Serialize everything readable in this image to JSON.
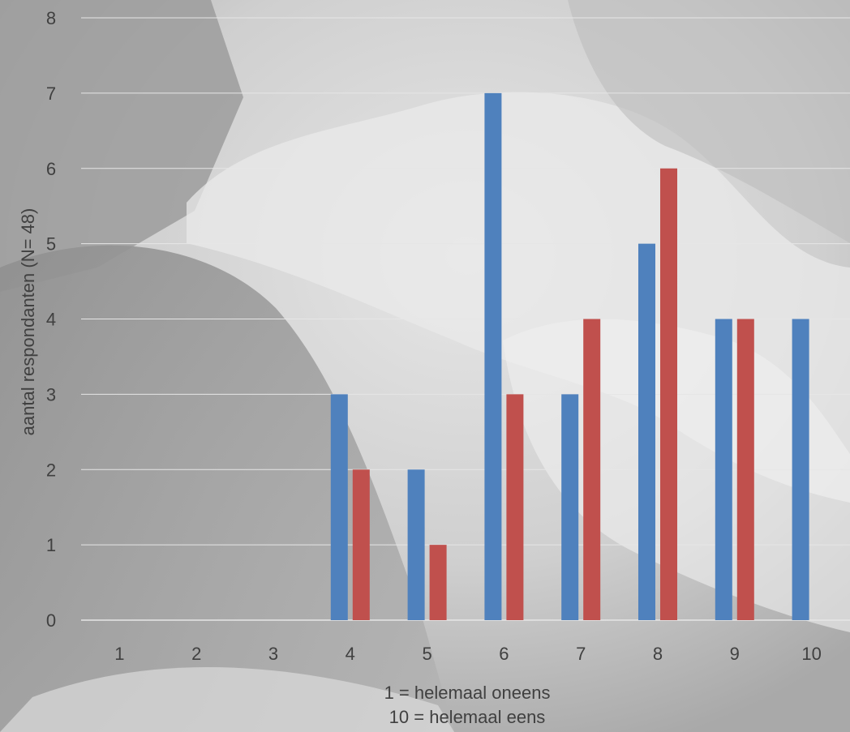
{
  "chart_data": {
    "type": "bar",
    "categories": [
      "1",
      "2",
      "3",
      "4",
      "5",
      "6",
      "7",
      "8",
      "9",
      "10"
    ],
    "series": [
      {
        "values": [
          0,
          0,
          0,
          3,
          2,
          7,
          3,
          5,
          4,
          4
        ]
      },
      {
        "values": [
          0,
          0,
          0,
          2,
          1,
          3,
          4,
          6,
          4,
          0
        ]
      }
    ],
    "ylabel": "aantal respondanten (N= 48)",
    "xlabel_lines": [
      "1 = helemaal oneens",
      "10 = helemaal eens"
    ],
    "ylim": [
      0,
      8
    ],
    "yticks": [
      0,
      1,
      2,
      3,
      4,
      5,
      6,
      7,
      8
    ],
    "grid": true,
    "legend": "none",
    "colors": [
      "#4f81bd",
      "#c0504d"
    ],
    "gridline_color": "#e6e6e6",
    "tick_label_color": "#404040"
  }
}
